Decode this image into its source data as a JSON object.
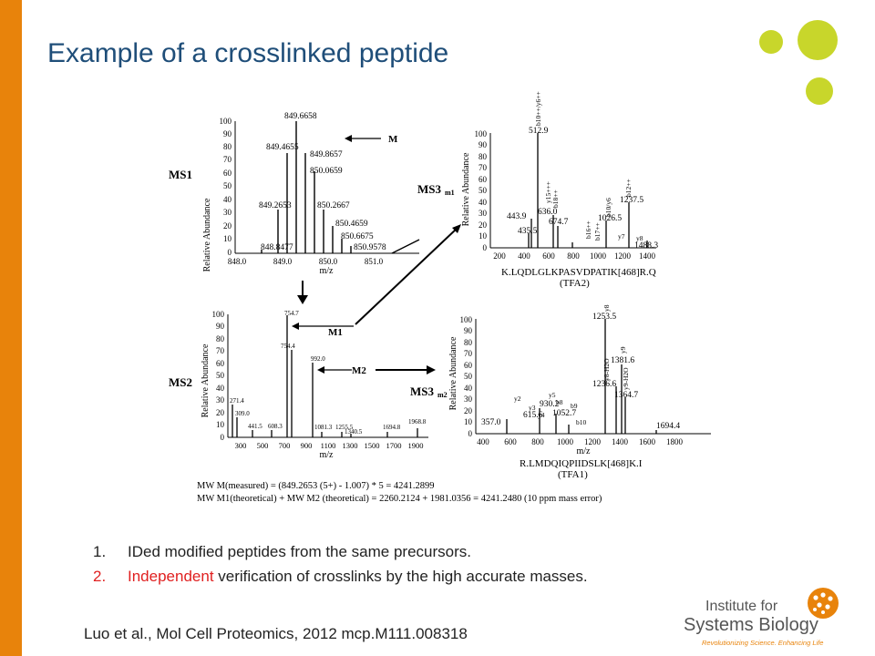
{
  "slide": {
    "title": "Example of a crosslinked peptide",
    "accent_color": "#e8830b",
    "title_color": "#1f4e79",
    "dot_color": "#c8d62b"
  },
  "figure": {
    "ms1": {
      "label": "MS1",
      "y_axis": "Relative Abundance",
      "x_axis": "m/z",
      "y_ticks": [
        "100",
        "90",
        "80",
        "70",
        "60",
        "50",
        "40",
        "30",
        "20",
        "10",
        "0"
      ],
      "x_ticks": [
        "848.0",
        "849.0",
        "850.0",
        "851.0"
      ],
      "peaks": [
        "849.6658",
        "849.4655",
        "849.8657",
        "850.0659",
        "849.2653",
        "850.2667",
        "850.4659",
        "850.6675",
        "848.8477",
        "850.9578"
      ],
      "arrow_label": "M"
    },
    "ms2": {
      "label": "MS2",
      "y_axis": "Relative Abundance",
      "x_axis": "m/z",
      "y_ticks": [
        "100",
        "90",
        "80",
        "70",
        "60",
        "50",
        "40",
        "30",
        "20",
        "10",
        "0"
      ],
      "x_ticks": [
        "300",
        "500",
        "700",
        "900",
        "1100",
        "1300",
        "1500",
        "1700",
        "1900"
      ],
      "peaks": [
        "754.7",
        "754.4",
        "992.0",
        "271.4",
        "309.0",
        "441.5",
        "608.3",
        "1081.3",
        "1255.5",
        "1340.5",
        "1694.8",
        "1968.8"
      ],
      "m1_label": "M1",
      "m2_label": "M2"
    },
    "ms3m1": {
      "label": "MS3",
      "subscript": "m1",
      "y_axis": "Relative Abundance",
      "x_ticks": [
        "200",
        "400",
        "600",
        "800",
        "1000",
        "1200",
        "1400"
      ],
      "y_ticks": [
        "100",
        "90",
        "80",
        "70",
        "60",
        "50",
        "40",
        "30",
        "20",
        "10",
        "0"
      ],
      "peaks": [
        "512.9",
        "443.9",
        "636.0",
        "674.7",
        "435.5",
        "1026.5",
        "1237.5",
        "1488.3"
      ],
      "ion_labels": [
        "b10++/y6++",
        "y15+++",
        "b18++",
        "b16++",
        "b10/y6",
        "b12++",
        "y7",
        "y8",
        "b17++"
      ],
      "peptide": "K.LQDLGLKPASVDPATIK[468]R.Q",
      "tag": "(TFA2)"
    },
    "ms3m2": {
      "label": "MS3",
      "subscript": "m2",
      "y_axis": "Relative Abundance",
      "x_axis": "m/z",
      "x_ticks": [
        "400",
        "600",
        "800",
        "1000",
        "1200",
        "1400",
        "1600",
        "1800"
      ],
      "y_ticks": [
        "100",
        "90",
        "80",
        "70",
        "60",
        "50",
        "40",
        "30",
        "20",
        "10",
        "0"
      ],
      "peaks": [
        "1253.5",
        "1381.6",
        "1236.6",
        "1364.7",
        "930.2",
        "1052.7",
        "615.6",
        "357.0",
        "1694.4"
      ],
      "ion_labels": [
        "y8",
        "y9",
        "y8-H2O",
        "y9-H2O",
        "b8",
        "y5",
        "y2",
        "y3",
        "y4",
        "b9",
        "b10"
      ],
      "peptide": "R.LMDQIQPIIDSLK[468]K.I",
      "tag": "(TFA1)"
    },
    "equations": [
      "MW M(measured) = (849.2653 (5+) - 1.007) * 5 = 4241.2899",
      "MW M1(theoretical) + MW M2 (theoretical) = 2260.2124 + 1981.0356 = 4241.2480 (10 ppm mass error)"
    ]
  },
  "list": [
    {
      "num": "1.",
      "text": "IDed modified peptides from the same precursors.",
      "highlight": ""
    },
    {
      "num": "2.",
      "text": " verification of crosslinks by the high accurate masses.",
      "highlight": "Independent"
    }
  ],
  "citation": "Luo et al., Mol Cell Proteomics, 2012 mcp.M111.008318",
  "logo": {
    "line1": "Institute for",
    "line2": "Systems Biology",
    "tagline": "Revolutionizing Science. Enhancing Life"
  }
}
